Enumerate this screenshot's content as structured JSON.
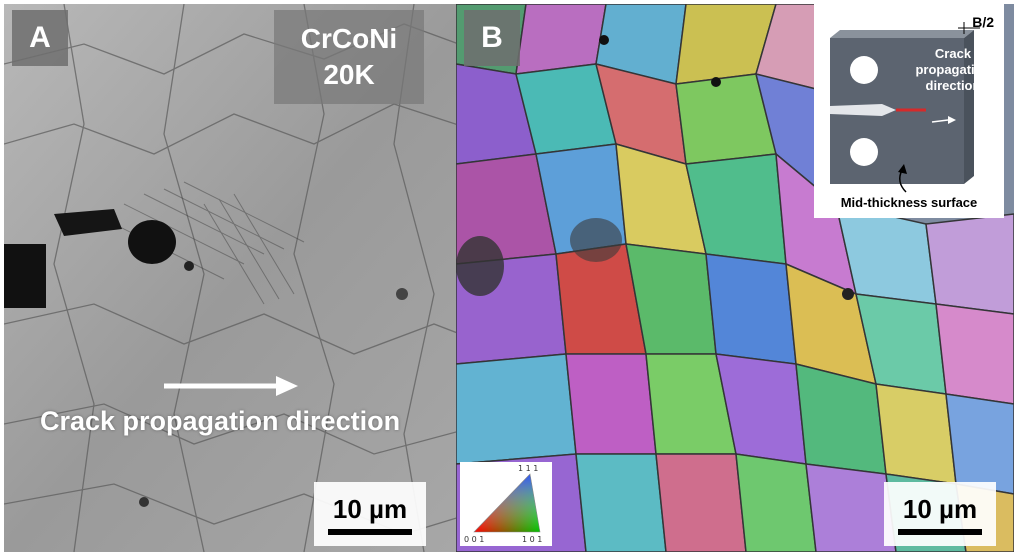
{
  "panels": [
    {
      "label": "A",
      "alloy_line1": "CrCoNi",
      "alloy_line2": "20K",
      "crack_label": "Crack propagation direction",
      "scale_bar": "10 µm"
    },
    {
      "label": "B",
      "scale_bar": "10 µm",
      "inset": {
        "thickness_label": "B/2",
        "crack_label_line1": "Crack",
        "crack_label_line2": "propagation",
        "crack_label_line3": "direction",
        "surface_label": "Mid-thickness surface"
      },
      "ipf_key": {
        "top": "1 1 1",
        "left": "0 0 1",
        "right": "1 0 1"
      }
    }
  ],
  "colors": {
    "panel_a_tone": "#9a9a9a",
    "label_box": "#6e6e6e",
    "specimen": "#5c6470",
    "crack_tip": "#d62a2a"
  }
}
